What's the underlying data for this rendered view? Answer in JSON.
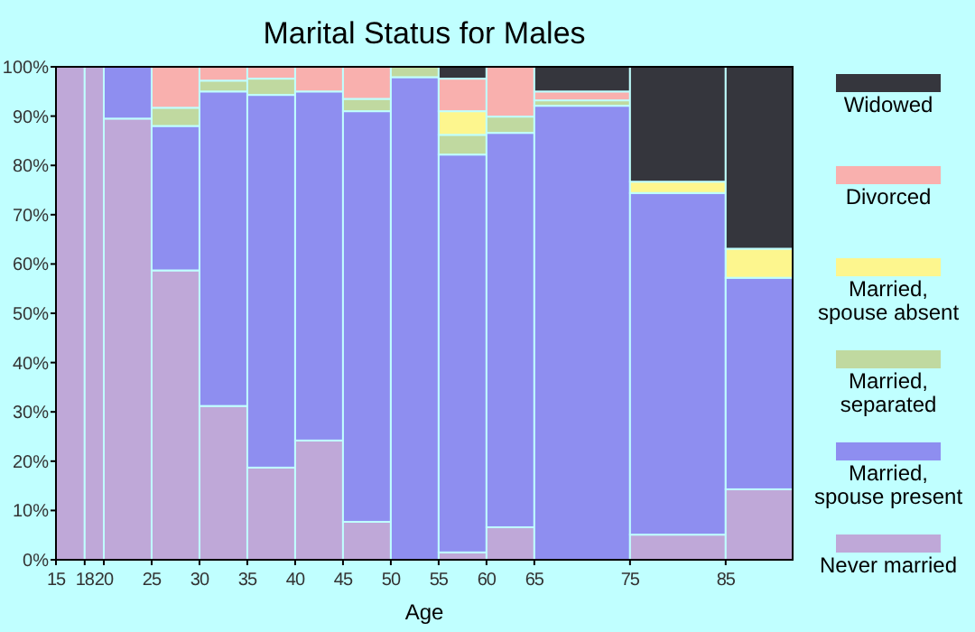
{
  "chart_data": {
    "type": "bar",
    "stacked": true,
    "title": "Marital Status for Males",
    "xlabel": "Age",
    "x": [
      16.5,
      19,
      22.5,
      27.5,
      32.5,
      37.5,
      42.5,
      47.5,
      52.5,
      57.5,
      62.5,
      70,
      80,
      88.5
    ],
    "xlim": [
      15,
      92
    ],
    "xticks": [
      15,
      18,
      20,
      25,
      30,
      35,
      40,
      45,
      50,
      55,
      60,
      65,
      75,
      85
    ],
    "ylim": [
      0,
      100
    ],
    "yticks": [
      {
        "value": 0,
        "label": "0%"
      },
      {
        "value": 10,
        "label": "10%"
      },
      {
        "value": 20,
        "label": "20%"
      },
      {
        "value": 30,
        "label": "30%"
      },
      {
        "value": 40,
        "label": "40%"
      },
      {
        "value": 50,
        "label": "50%"
      },
      {
        "value": 60,
        "label": "60%"
      },
      {
        "value": 70,
        "label": "70%"
      },
      {
        "value": 80,
        "label": "80%"
      },
      {
        "value": 90,
        "label": "90%"
      },
      {
        "value": 100,
        "label": "100%"
      }
    ],
    "legend": "right",
    "grid": false,
    "series": [
      {
        "name": "Never married",
        "color": "#bfa8d8",
        "values": [
          100,
          100,
          89.5,
          58.7,
          31.2,
          18.7,
          24.2,
          7.7,
          0,
          1.5,
          6.6,
          0,
          5.1,
          14.3
        ]
      },
      {
        "name": "Married, spouse present",
        "color": "#8e8ef0",
        "values": [
          0,
          0,
          10.5,
          29.3,
          63.8,
          75.6,
          70.8,
          83.3,
          97.9,
          80.7,
          80.0,
          92.1,
          69.3,
          42.9
        ]
      },
      {
        "name": "Married, separated",
        "color": "#c0d9a0",
        "values": [
          0,
          0,
          0,
          3.7,
          2.2,
          3.3,
          0,
          2.5,
          2.1,
          4.0,
          3.3,
          1.1,
          0,
          0
        ]
      },
      {
        "name": "Married, spouse absent",
        "color": "#fdf68e",
        "values": [
          0,
          0,
          0,
          0,
          0,
          0,
          0,
          0,
          0,
          4.8,
          0,
          0,
          2.3,
          5.9
        ]
      },
      {
        "name": "Divorced",
        "color": "#f9b0ae",
        "values": [
          0,
          0,
          0,
          8.3,
          2.8,
          2.4,
          5.0,
          6.5,
          0,
          6.6,
          10.1,
          1.8,
          0,
          0
        ]
      },
      {
        "name": "Widowed",
        "color": "#35363d",
        "values": [
          0,
          0,
          0,
          0,
          0,
          0,
          0,
          0,
          0,
          2.4,
          0,
          5.0,
          23.3,
          36.9
        ]
      }
    ]
  }
}
